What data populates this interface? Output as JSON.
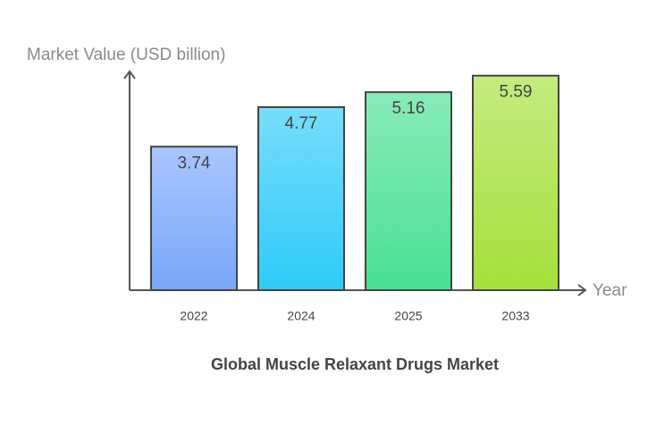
{
  "chart_data": {
    "type": "bar",
    "title": "Global Muscle Relaxant Drugs Market",
    "y_label": "Market Value (USD billion)",
    "x_label": "Year",
    "categories": [
      "2022",
      "2024",
      "2025",
      "2033"
    ],
    "values": [
      3.74,
      4.77,
      5.16,
      5.59
    ],
    "colors": [
      "#7aa7fc",
      "#2ecbf9",
      "#48e095",
      "#a5e03a"
    ],
    "ylim": [
      0,
      5.7
    ]
  }
}
